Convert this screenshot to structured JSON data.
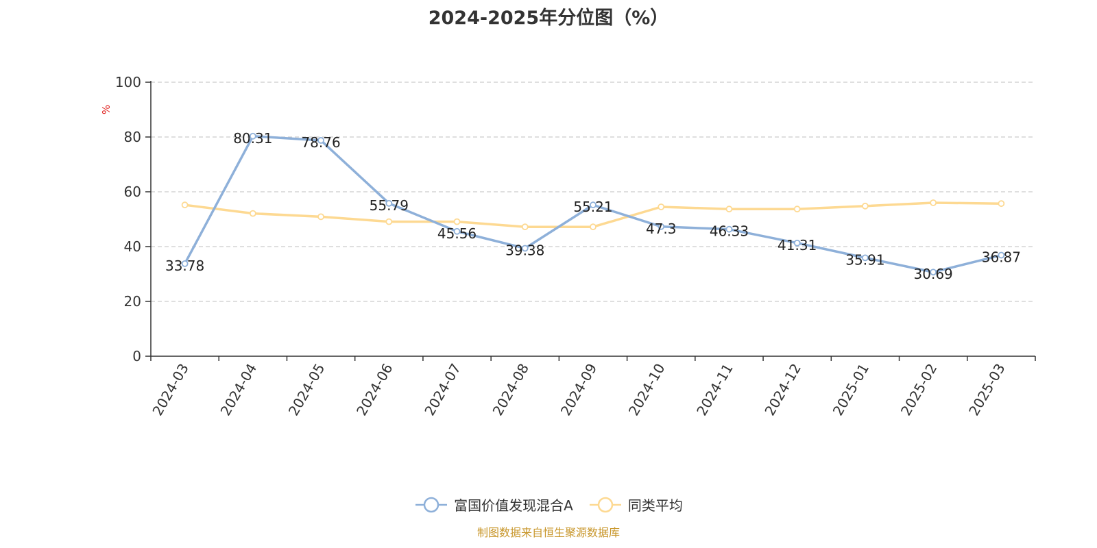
{
  "chart_data": {
    "type": "line",
    "title": "2024-2025年分位图（%）",
    "ylabel": "%",
    "xlabel": "",
    "ylim": [
      0,
      100
    ],
    "yticks": [
      0,
      20,
      40,
      60,
      80,
      100
    ],
    "grid": true,
    "legend_position": "bottom",
    "categories": [
      "2024-03",
      "2024-04",
      "2024-05",
      "2024-06",
      "2024-07",
      "2024-08",
      "2024-09",
      "2024-10",
      "2024-11",
      "2024-12",
      "2025-01",
      "2025-02",
      "2025-03"
    ],
    "series": [
      {
        "name": "富国价值发现混合A",
        "color": "#8eb0d9",
        "values": [
          33.78,
          80.31,
          78.76,
          55.79,
          45.56,
          39.38,
          55.21,
          47.3,
          46.33,
          41.31,
          35.91,
          30.69,
          36.87
        ],
        "labels": [
          "33.78",
          "80.31",
          "78.76",
          "55.79",
          "45.56",
          "39.38",
          "55.21",
          "47.3",
          "46.33",
          "41.31",
          "35.91",
          "30.69",
          "36.87"
        ],
        "show_labels": true
      },
      {
        "name": "同类平均",
        "color": "#fdd992",
        "values": [
          55.2,
          52.1,
          50.9,
          49.1,
          49.1,
          47.2,
          47.2,
          54.5,
          53.7,
          53.7,
          54.8,
          56.0,
          55.7
        ],
        "show_labels": false
      }
    ]
  },
  "source_note": "制图数据来自恒生聚源数据库"
}
